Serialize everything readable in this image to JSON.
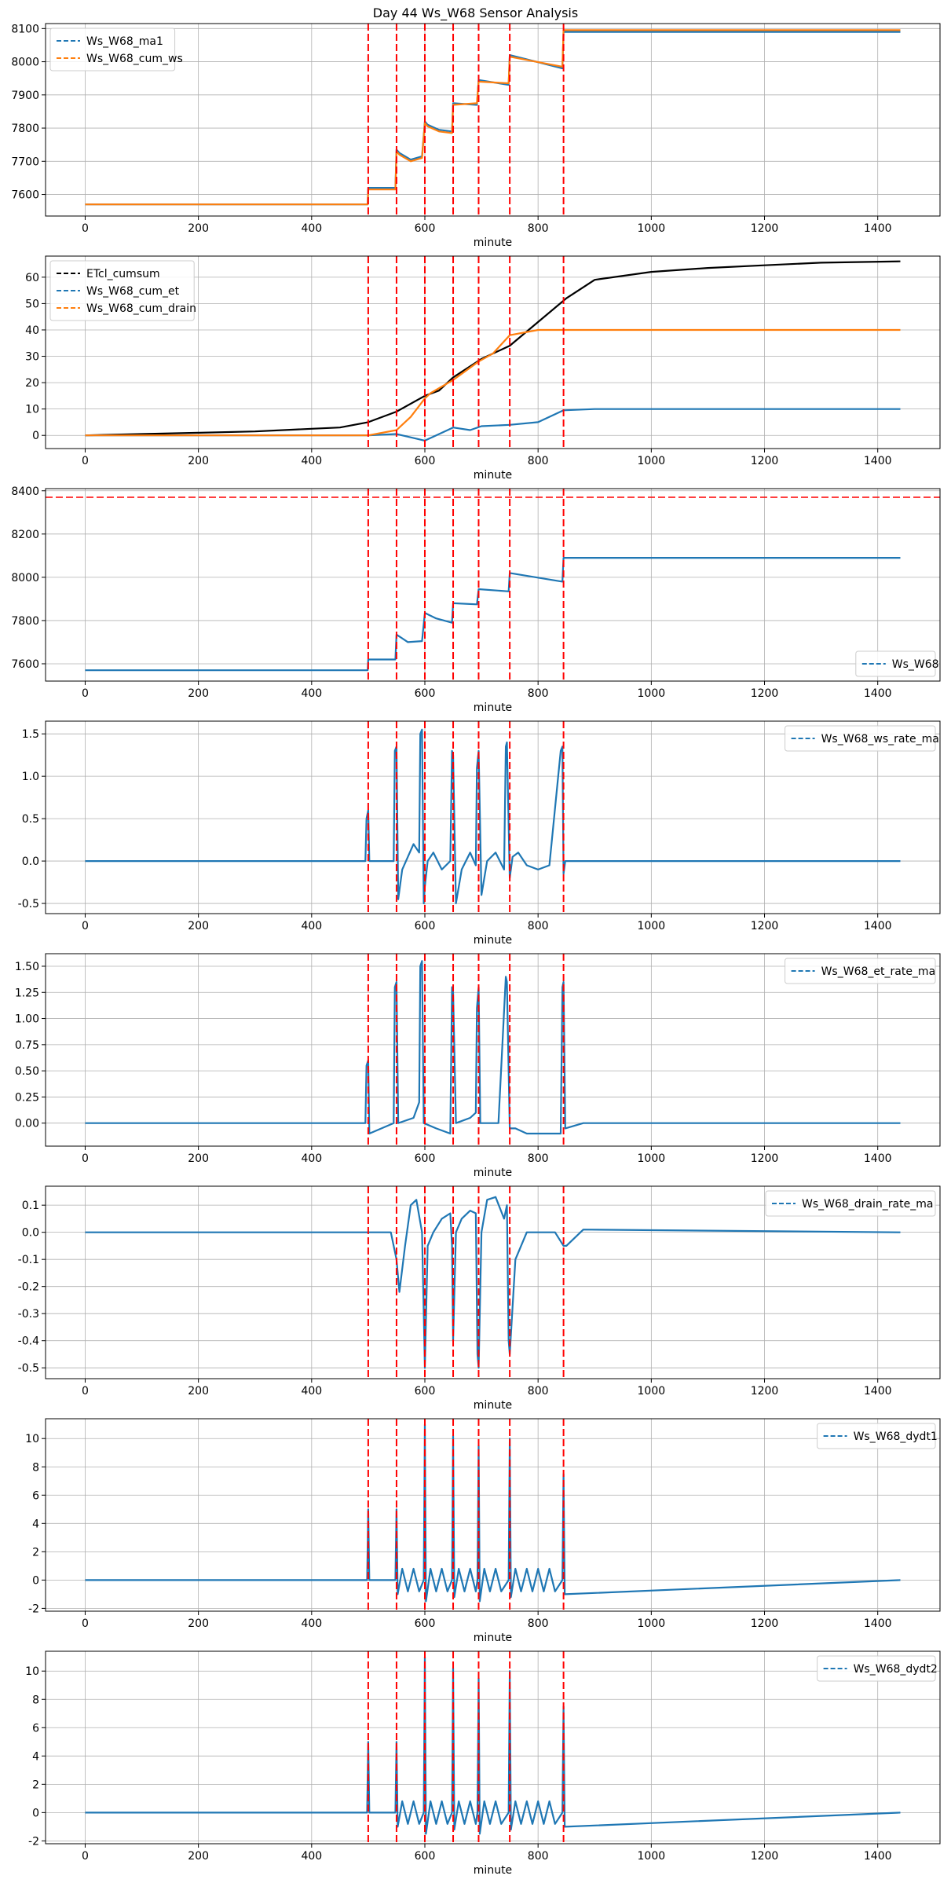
{
  "figure": {
    "title": "Day 44 Ws_W68 Sensor Analysis"
  },
  "colors": {
    "blue": "#1f77b4",
    "orange": "#ff7f0e",
    "black": "#000000",
    "red": "#ff0000",
    "grid": "#b0b0b0"
  },
  "chart_data": [
    {
      "type": "line",
      "xlabel": "minute",
      "xlim": [
        -70,
        1510
      ],
      "xticks": [
        0,
        200,
        400,
        600,
        800,
        1000,
        1200,
        1400
      ],
      "ylim": [
        7535,
        8115
      ],
      "yticks": [
        7600,
        7700,
        7800,
        7900,
        8000,
        8100
      ],
      "ytick_labels": [
        "7600",
        "7700",
        "7800",
        "7900",
        "8000",
        "8100"
      ],
      "grid": true,
      "legend_position": "upper-left",
      "event_lines_x": [
        500,
        550,
        600,
        650,
        695,
        750,
        845
      ],
      "series": [
        {
          "name": "Ws_W68_ma1",
          "color": "#1f77b4",
          "x": [
            0,
            499,
            500,
            548,
            550,
            555,
            575,
            595,
            600,
            605,
            625,
            648,
            650,
            692,
            695,
            748,
            750,
            843,
            845,
            1440
          ],
          "y": [
            7570,
            7570,
            7620,
            7620,
            7735,
            7725,
            7705,
            7715,
            7820,
            7810,
            7795,
            7790,
            7875,
            7870,
            7945,
            7930,
            8020,
            7980,
            8090,
            8090
          ]
        },
        {
          "name": "Ws_W68_cum_ws",
          "color": "#ff7f0e",
          "x": [
            0,
            499,
            500,
            548,
            550,
            555,
            575,
            595,
            600,
            605,
            625,
            648,
            650,
            692,
            695,
            748,
            750,
            843,
            845,
            1440
          ],
          "y": [
            7570,
            7570,
            7615,
            7615,
            7730,
            7720,
            7700,
            7710,
            7815,
            7805,
            7790,
            7785,
            7870,
            7875,
            7940,
            7935,
            8015,
            7985,
            8095,
            8095
          ]
        }
      ]
    },
    {
      "type": "line",
      "xlabel": "minute",
      "xlim": [
        -70,
        1510
      ],
      "xticks": [
        0,
        200,
        400,
        600,
        800,
        1000,
        1200,
        1400
      ],
      "ylim": [
        -5,
        68
      ],
      "yticks": [
        0,
        10,
        20,
        30,
        40,
        50,
        60
      ],
      "ytick_labels": [
        "0",
        "10",
        "20",
        "30",
        "40",
        "50",
        "60"
      ],
      "grid": true,
      "legend_position": "upper-left",
      "event_lines_x": [
        500,
        550,
        600,
        650,
        695,
        750,
        845
      ],
      "series": [
        {
          "name": "ETcl_cumsum",
          "color": "#000000",
          "x": [
            0,
            100,
            200,
            300,
            400,
            450,
            500,
            550,
            600,
            625,
            650,
            700,
            750,
            800,
            850,
            900,
            1000,
            1100,
            1200,
            1300,
            1440
          ],
          "y": [
            0,
            0.5,
            1,
            1.5,
            2.5,
            3,
            5,
            9,
            15,
            17,
            22,
            29,
            34,
            43,
            52,
            59,
            62,
            63.5,
            64.5,
            65.5,
            66
          ]
        },
        {
          "name": "Ws_W68_cum_et",
          "color": "#1f77b4",
          "x": [
            0,
            500,
            550,
            580,
            600,
            620,
            650,
            680,
            700,
            750,
            800,
            845,
            900,
            1440
          ],
          "y": [
            0,
            0,
            0.5,
            -1,
            -2,
            0,
            3,
            2,
            3.5,
            4,
            5,
            9.5,
            10,
            10
          ]
        },
        {
          "name": "Ws_W68_cum_drain",
          "color": "#ff7f0e",
          "x": [
            0,
            500,
            550,
            575,
            600,
            610,
            650,
            695,
            720,
            750,
            800,
            1440
          ],
          "y": [
            0,
            0,
            2,
            7,
            14,
            16,
            21,
            28,
            31,
            38,
            40,
            40
          ]
        }
      ]
    },
    {
      "type": "line",
      "xlabel": "minute",
      "xlim": [
        -70,
        1510
      ],
      "xticks": [
        0,
        200,
        400,
        600,
        800,
        1000,
        1200,
        1400
      ],
      "ylim": [
        7520,
        8410
      ],
      "yticks": [
        7600,
        7800,
        8000,
        8200,
        8400
      ],
      "ytick_labels": [
        "7600",
        "7800",
        "8000",
        "8200",
        "8400"
      ],
      "grid": true,
      "legend_position": "lower-right",
      "event_lines_x": [
        500,
        550,
        600,
        650,
        695,
        750,
        845
      ],
      "hline_y": 8370,
      "series": [
        {
          "name": "Ws_W68",
          "color": "#1f77b4",
          "x": [
            0,
            499,
            500,
            548,
            550,
            570,
            595,
            600,
            620,
            648,
            650,
            692,
            695,
            748,
            750,
            843,
            845,
            1440
          ],
          "y": [
            7570,
            7570,
            7620,
            7620,
            7735,
            7700,
            7705,
            7835,
            7810,
            7790,
            7880,
            7875,
            7945,
            7935,
            8020,
            7980,
            8090,
            8090
          ]
        }
      ]
    },
    {
      "type": "line",
      "xlabel": "minute",
      "xlim": [
        -70,
        1510
      ],
      "xticks": [
        0,
        200,
        400,
        600,
        800,
        1000,
        1200,
        1400
      ],
      "ylim": [
        -0.62,
        1.65
      ],
      "yticks": [
        -0.5,
        0.0,
        0.5,
        1.0,
        1.5
      ],
      "ytick_labels": [
        "-0.5",
        "0.0",
        "0.5",
        "1.0",
        "1.5"
      ],
      "grid": true,
      "legend_position": "upper-right",
      "event_lines_x": [
        500,
        550,
        600,
        650,
        695,
        750,
        845
      ],
      "series": [
        {
          "name": "Ws_W68_ws_rate_ma",
          "color": "#1f77b4",
          "x": [
            0,
            495,
            497,
            500,
            502,
            545,
            547,
            550,
            553,
            560,
            570,
            580,
            590,
            592,
            595,
            598,
            600,
            605,
            615,
            630,
            645,
            648,
            650,
            655,
            665,
            680,
            690,
            692,
            695,
            700,
            710,
            725,
            740,
            743,
            745,
            750,
            755,
            765,
            780,
            800,
            820,
            840,
            843,
            845,
            848,
            860,
            1440
          ],
          "y": [
            0,
            0,
            0.5,
            0.6,
            0,
            0,
            1.3,
            1.35,
            -0.45,
            -0.1,
            0.05,
            0.2,
            0.1,
            1.5,
            1.55,
            -0.5,
            -0.3,
            0.0,
            0.1,
            -0.1,
            0.0,
            1.3,
            1.25,
            -0.5,
            -0.1,
            0.1,
            -0.05,
            1.1,
            1.3,
            -0.4,
            0.0,
            0.1,
            -0.1,
            1.35,
            1.4,
            -0.2,
            0.05,
            0.1,
            -0.05,
            -0.1,
            -0.05,
            1.3,
            1.35,
            -0.15,
            0,
            0,
            0
          ]
        }
      ]
    },
    {
      "type": "line",
      "xlabel": "minute",
      "xlim": [
        -70,
        1510
      ],
      "xticks": [
        0,
        200,
        400,
        600,
        800,
        1000,
        1200,
        1400
      ],
      "ylim": [
        -0.22,
        1.62
      ],
      "yticks": [
        0.0,
        0.25,
        0.5,
        0.75,
        1.0,
        1.25,
        1.5
      ],
      "ytick_labels": [
        "0.00",
        "0.25",
        "0.50",
        "0.75",
        "1.00",
        "1.25",
        "1.50"
      ],
      "grid": true,
      "legend_position": "upper-right",
      "event_lines_x": [
        500,
        550,
        600,
        650,
        695,
        750,
        845
      ],
      "series": [
        {
          "name": "Ws_W68_et_rate_ma",
          "color": "#1f77b4",
          "x": [
            0,
            495,
            497,
            500,
            502,
            545,
            547,
            550,
            553,
            580,
            590,
            592,
            595,
            598,
            620,
            645,
            648,
            650,
            655,
            680,
            690,
            692,
            695,
            698,
            730,
            743,
            745,
            750,
            760,
            780,
            800,
            820,
            840,
            843,
            845,
            848,
            880,
            1440
          ],
          "y": [
            0,
            0,
            0.55,
            0.6,
            -0.1,
            0,
            1.3,
            1.35,
            0.0,
            0.05,
            0.2,
            1.5,
            1.55,
            0.0,
            -0.05,
            -0.1,
            1.3,
            1.25,
            0.0,
            0.05,
            0.1,
            1.1,
            1.3,
            0.0,
            0.0,
            1.4,
            1.35,
            -0.05,
            -0.05,
            -0.1,
            -0.1,
            -0.1,
            -0.1,
            1.3,
            1.35,
            -0.05,
            0,
            0
          ]
        }
      ]
    },
    {
      "type": "line",
      "xlabel": "minute",
      "xlim": [
        -70,
        1510
      ],
      "xticks": [
        0,
        200,
        400,
        600,
        800,
        1000,
        1200,
        1400
      ],
      "ylim": [
        -0.54,
        0.17
      ],
      "yticks": [
        -0.5,
        -0.4,
        -0.3,
        -0.2,
        -0.1,
        0.0,
        0.1
      ],
      "ytick_labels": [
        "-0.5",
        "-0.4",
        "-0.3",
        "-0.2",
        "-0.1",
        "0.0",
        "0.1"
      ],
      "grid": true,
      "legend_position": "upper-right",
      "event_lines_x": [
        500,
        550,
        600,
        650,
        695,
        750,
        845
      ],
      "series": [
        {
          "name": "Ws_W68_drain_rate_ma",
          "color": "#1f77b4",
          "x": [
            0,
            540,
            550,
            555,
            565,
            575,
            585,
            595,
            598,
            600,
            605,
            615,
            630,
            645,
            648,
            650,
            655,
            665,
            680,
            690,
            693,
            695,
            700,
            710,
            725,
            740,
            745,
            748,
            750,
            760,
            780,
            800,
            830,
            845,
            850,
            880,
            1440
          ],
          "y": [
            0,
            0,
            -0.1,
            -0.22,
            -0.05,
            0.1,
            0.12,
            0.0,
            -0.3,
            -0.5,
            -0.05,
            0.0,
            0.05,
            0.07,
            -0.05,
            -0.4,
            0.0,
            0.05,
            0.08,
            0.07,
            -0.45,
            -0.5,
            0.0,
            0.12,
            0.13,
            0.05,
            0.1,
            -0.4,
            -0.45,
            -0.1,
            0.0,
            0.0,
            0.0,
            -0.05,
            -0.05,
            0.01,
            0
          ]
        }
      ]
    },
    {
      "type": "line",
      "xlabel": "minute",
      "xlim": [
        -70,
        1510
      ],
      "xticks": [
        0,
        200,
        400,
        600,
        800,
        1000,
        1200,
        1400
      ],
      "ylim": [
        -2.2,
        11.4
      ],
      "yticks": [
        -2,
        0,
        2,
        4,
        6,
        8,
        10
      ],
      "ytick_labels": [
        "-2",
        "0",
        "2",
        "4",
        "6",
        "8",
        "10"
      ],
      "grid": true,
      "legend_position": "upper-right",
      "event_lines_x": [
        500,
        550,
        600,
        650,
        695,
        750,
        845
      ],
      "series": [
        {
          "name": "Ws_W68_dydt1",
          "color": "#1f77b4",
          "x": [
            0,
            498,
            500,
            502,
            548,
            550,
            552,
            560,
            570,
            580,
            590,
            598,
            600,
            602,
            610,
            620,
            630,
            640,
            648,
            650,
            652,
            660,
            670,
            680,
            690,
            693,
            695,
            697,
            705,
            715,
            725,
            735,
            748,
            750,
            752,
            760,
            770,
            780,
            790,
            800,
            810,
            820,
            830,
            843,
            845,
            847,
            1440
          ],
          "y": [
            0,
            0,
            5,
            0,
            0,
            5,
            -1,
            0.8,
            -0.8,
            0.8,
            -0.8,
            0,
            11,
            -1.5,
            0.8,
            -0.8,
            0.8,
            -0.8,
            0,
            10.2,
            -1.2,
            0.8,
            -0.8,
            0.8,
            -0.8,
            0,
            9.5,
            -1.5,
            0.8,
            -0.8,
            0.8,
            -0.8,
            0,
            10,
            -1.2,
            0.8,
            -0.8,
            0.8,
            -0.8,
            0.8,
            -0.8,
            0.8,
            -0.8,
            0,
            7.5,
            -1,
            0
          ]
        }
      ]
    },
    {
      "type": "line",
      "xlabel": "minute",
      "xlim": [
        -70,
        1510
      ],
      "xticks": [
        0,
        200,
        400,
        600,
        800,
        1000,
        1200,
        1400
      ],
      "ylim": [
        -2.2,
        11.4
      ],
      "yticks": [
        -2,
        0,
        2,
        4,
        6,
        8,
        10
      ],
      "ytick_labels": [
        "-2",
        "0",
        "2",
        "4",
        "6",
        "8",
        "10"
      ],
      "grid": true,
      "legend_position": "upper-right",
      "event_lines_x": [
        500,
        550,
        600,
        650,
        695,
        750,
        845
      ],
      "series": [
        {
          "name": "Ws_W68_dydt2",
          "color": "#1f77b4",
          "x": [
            0,
            498,
            500,
            502,
            548,
            550,
            552,
            560,
            570,
            580,
            590,
            598,
            600,
            602,
            610,
            620,
            630,
            640,
            648,
            650,
            652,
            660,
            670,
            680,
            690,
            693,
            695,
            697,
            705,
            715,
            725,
            735,
            748,
            750,
            752,
            760,
            770,
            780,
            790,
            800,
            810,
            820,
            830,
            843,
            845,
            847,
            1440
          ],
          "y": [
            0,
            0,
            5,
            0,
            0,
            5,
            -1,
            0.8,
            -0.8,
            0.8,
            -0.8,
            0,
            11,
            -1.5,
            0.8,
            -0.8,
            0.8,
            -0.8,
            0,
            10.2,
            -1.2,
            0.8,
            -0.8,
            0.8,
            -0.8,
            0,
            9.5,
            -1.5,
            0.8,
            -0.8,
            0.8,
            -0.8,
            0,
            10,
            -1.2,
            0.8,
            -0.8,
            0.8,
            -0.8,
            0.8,
            -0.8,
            0.8,
            -0.8,
            0,
            7.5,
            -1,
            0
          ]
        }
      ]
    }
  ]
}
